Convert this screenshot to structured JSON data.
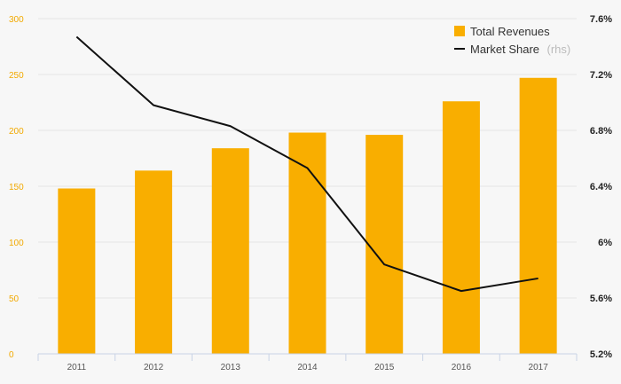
{
  "chart_data": {
    "type": "bar",
    "categories": [
      "2011",
      "2012",
      "2013",
      "2014",
      "2015",
      "2016",
      "2017"
    ],
    "series": [
      {
        "name": "Total Revenues",
        "type": "bar",
        "axis": "left",
        "color": "#f9ae00",
        "values": [
          148,
          164,
          184,
          198,
          196,
          226,
          247
        ]
      },
      {
        "name": "Market Share",
        "legend_suffix": "(rhs)",
        "type": "line",
        "axis": "right",
        "color": "#111111",
        "values": [
          7.47,
          6.98,
          6.83,
          6.53,
          5.84,
          5.65,
          5.74
        ]
      }
    ],
    "y_left": {
      "ylim": [
        0,
        300
      ],
      "ticks": [
        "0",
        "50",
        "100",
        "150",
        "200",
        "250",
        "300"
      ],
      "tick_color": "#f2a900"
    },
    "y_right": {
      "ylim": [
        5.2,
        7.6
      ],
      "ticks": [
        "5.2%",
        "5.6%",
        "6%",
        "6.4%",
        "6.8%",
        "7.2%",
        "7.6%"
      ]
    },
    "title": "",
    "xlabel": "",
    "ylabel": "",
    "grid": true,
    "legend": "top-right"
  }
}
